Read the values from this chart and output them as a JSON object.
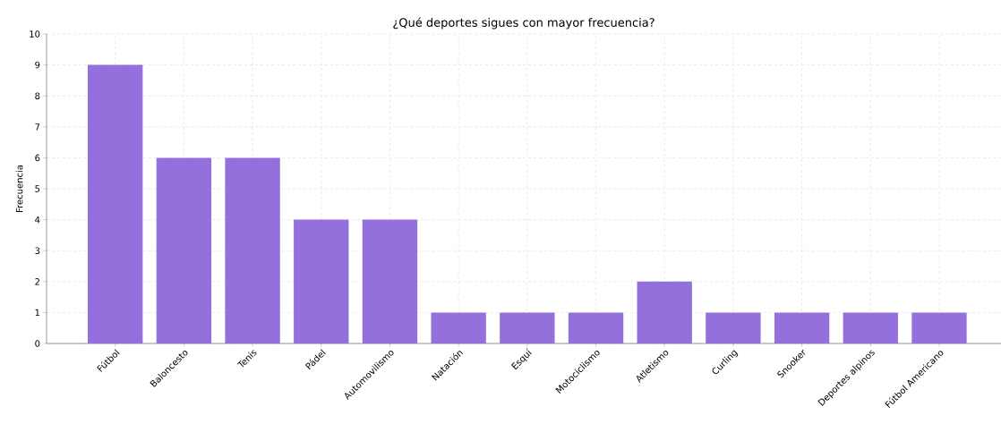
{
  "chart_data": {
    "type": "bar",
    "title": "¿Qué deportes sigues con mayor frecuencia?",
    "ylabel": "Frecuencia",
    "categories": [
      "Fútbol",
      "Baloncesto",
      "Tenis",
      "Pádel",
      "Automovilismo",
      "Natación",
      "Esquí",
      "Motociclismo",
      "Atletismo",
      "Curling",
      "Snooker",
      "Deportes alpinos",
      "Fútbol Americano"
    ],
    "values": [
      9,
      6,
      6,
      4,
      4,
      1,
      1,
      1,
      2,
      1,
      1,
      1,
      1
    ],
    "color": "#9370db",
    "ylim": [
      0,
      10
    ],
    "yticks": [
      0,
      1,
      2,
      3,
      4,
      5,
      6,
      7,
      8,
      9,
      10
    ],
    "grid": true
  }
}
